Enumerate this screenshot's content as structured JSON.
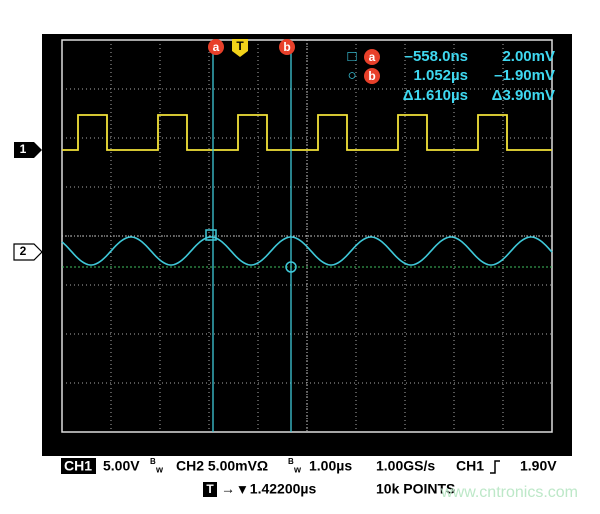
{
  "cursor_tags": {
    "a": "a",
    "trigger": "T",
    "b": "b"
  },
  "readout": {
    "rows": [
      {
        "symbol": "□",
        "cursor": "a",
        "time": "–558.0ns",
        "volts": "2.00mV"
      },
      {
        "symbol": "○",
        "cursor": "b",
        "time": "1.052µs",
        "volts": "–1.90mV"
      },
      {
        "time": "Δ1.610µs",
        "volts": "Δ3.90mV"
      }
    ]
  },
  "channel_markers": [
    "1",
    "2"
  ],
  "status": {
    "line1": {
      "ch1": "CH1",
      "ch1_scale": "5.00V",
      "ch1_bw": "B",
      "ch1_bw_sub": "w",
      "ch2": "CH2 5.00mVΩ",
      "ch2_bw": "B",
      "ch2_bw_sub": "w",
      "timebase": "1.00µs",
      "rate": "1.00GS/s",
      "trig_src": "CH1",
      "trig_level": "1.90V"
    },
    "line2": {
      "trig_box": "T",
      "trig_pos": "→ ▾ 1.42200µs",
      "points": "10k POINTS"
    }
  },
  "watermark": "www.cntronics.com"
}
